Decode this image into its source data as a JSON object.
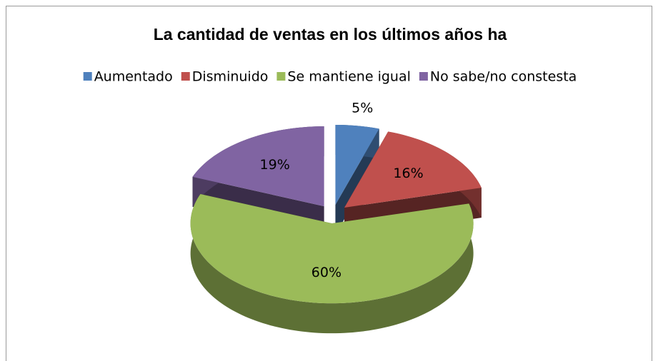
{
  "chart_data": {
    "type": "pie",
    "title": "La cantidad de ventas en los últimos años ha",
    "categories": [
      "Aumentado",
      "Disminuido",
      "Se mantiene igual",
      "No sabe/no constesta"
    ],
    "values": [
      5,
      16,
      60,
      19
    ],
    "value_labels": [
      "5%",
      "16%",
      "60%",
      "19%"
    ],
    "colors": [
      "#4f81bd",
      "#c0504d",
      "#9bbb59",
      "#8064a2"
    ],
    "legend": "top"
  }
}
